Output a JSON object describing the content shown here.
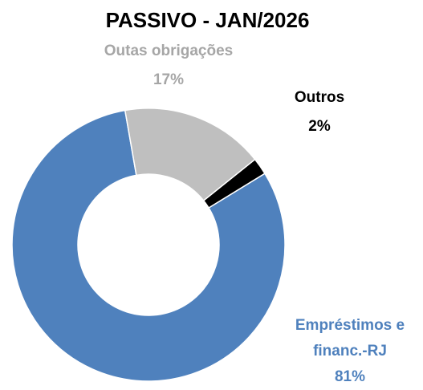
{
  "chart_data": {
    "type": "donut",
    "title": "PASSIVO - JAN/2026",
    "categories": [
      "Empréstimos e financ.-RJ",
      "Outas obrigações",
      "Outros"
    ],
    "values": [
      81,
      17,
      2
    ],
    "value_labels": [
      "81%",
      "17%",
      "2%"
    ],
    "colors": [
      "#4f81bd",
      "#bfbfbf",
      "#000000"
    ]
  }
}
